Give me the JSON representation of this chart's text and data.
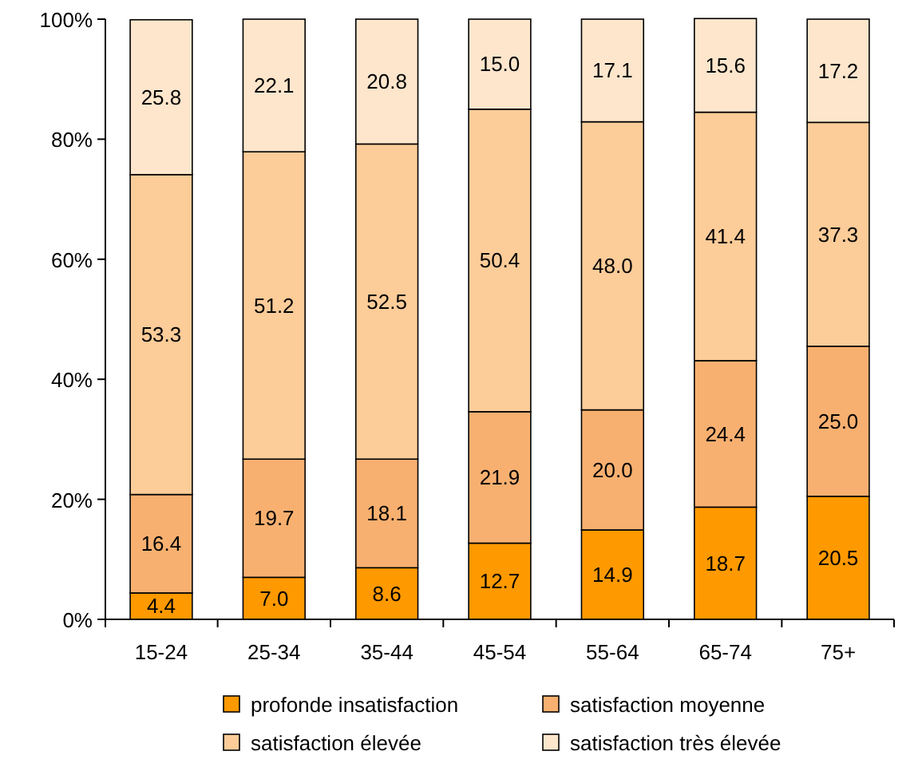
{
  "chart_data": {
    "type": "bar",
    "stacked": true,
    "categories": [
      "15-24",
      "25-34",
      "35-44",
      "45-54",
      "55-64",
      "65-74",
      "75+"
    ],
    "series": [
      {
        "name": "profonde insatisfaction",
        "color": "#ff9900",
        "values": [
          4.4,
          7.0,
          8.6,
          12.7,
          14.9,
          18.7,
          20.5
        ],
        "value_labels": [
          "4.4",
          "7.0",
          "8.6",
          "12.7",
          "14.9",
          "18.7",
          "20.5"
        ]
      },
      {
        "name": "satisfaction moyenne",
        "color": "#f8b070",
        "values": [
          16.4,
          19.7,
          18.1,
          21.9,
          20.0,
          24.4,
          25.0
        ],
        "value_labels": [
          "16.4",
          "19.7",
          "18.1",
          "21.9",
          "20.0",
          "24.4",
          "25.0"
        ]
      },
      {
        "name": "satisfaction élevée",
        "color": "#fccc99",
        "values": [
          53.3,
          51.2,
          52.5,
          50.4,
          48.0,
          41.4,
          37.3
        ],
        "value_labels": [
          "53.3",
          "51.2",
          "52.5",
          "50.4",
          "48.0",
          "41.4",
          "37.3"
        ]
      },
      {
        "name": "satisfaction très élevée",
        "color": "#fde6cc",
        "values": [
          25.8,
          22.1,
          20.8,
          15.0,
          17.1,
          15.6,
          17.2
        ],
        "value_labels": [
          "25.8",
          "22.1",
          "20.8",
          "15.0",
          "17.1",
          "15.6",
          "17.2"
        ]
      }
    ],
    "ylim": [
      0,
      100
    ],
    "yticks": [
      {
        "value": 0,
        "label": "0%"
      },
      {
        "value": 20,
        "label": "20%"
      },
      {
        "value": 40,
        "label": "40%"
      },
      {
        "value": 60,
        "label": "60%"
      },
      {
        "value": 80,
        "label": "80%"
      },
      {
        "value": 100,
        "label": "100%"
      }
    ],
    "legend": "bottom"
  }
}
